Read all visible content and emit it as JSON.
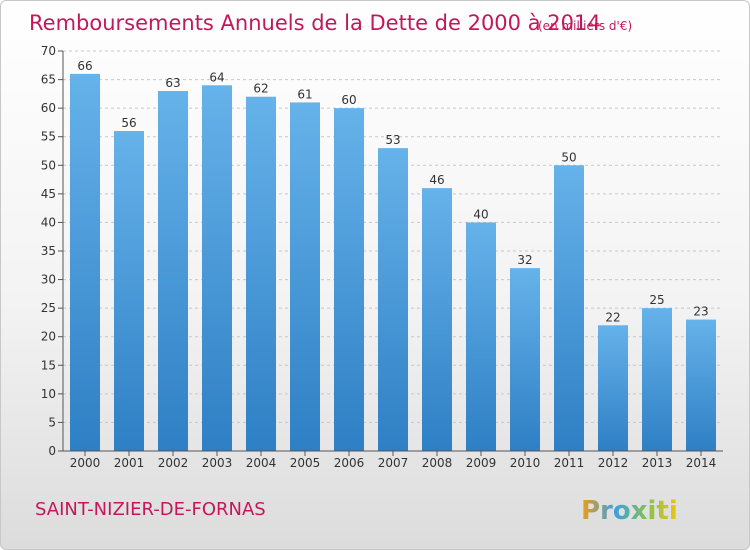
{
  "header": {
    "title": "Remboursements Annuels de la Dette de 2000 à 2014",
    "unit": "(en milliers d'€)"
  },
  "footer": {
    "commune": "SAINT-NIZIER-DE-FORNAS",
    "logo": "Proxiti"
  },
  "colors": {
    "bar_top": "#66b2ea",
    "bar_bottom": "#2e7fc4",
    "title": "#c2185b",
    "grid": "#c8c8c8"
  },
  "chart_data": {
    "type": "bar",
    "categories": [
      "2000",
      "2001",
      "2002",
      "2003",
      "2004",
      "2005",
      "2006",
      "2007",
      "2008",
      "2009",
      "2010",
      "2011",
      "2012",
      "2013",
      "2014"
    ],
    "values": [
      66,
      56,
      63,
      64,
      62,
      61,
      60,
      53,
      46,
      40,
      32,
      50,
      22,
      25,
      23
    ],
    "ylim": [
      0,
      70
    ],
    "yticks": [
      0,
      5,
      10,
      15,
      20,
      25,
      30,
      35,
      40,
      45,
      50,
      55,
      60,
      65,
      70
    ],
    "grid": true,
    "xlabel": "",
    "ylabel": ""
  }
}
